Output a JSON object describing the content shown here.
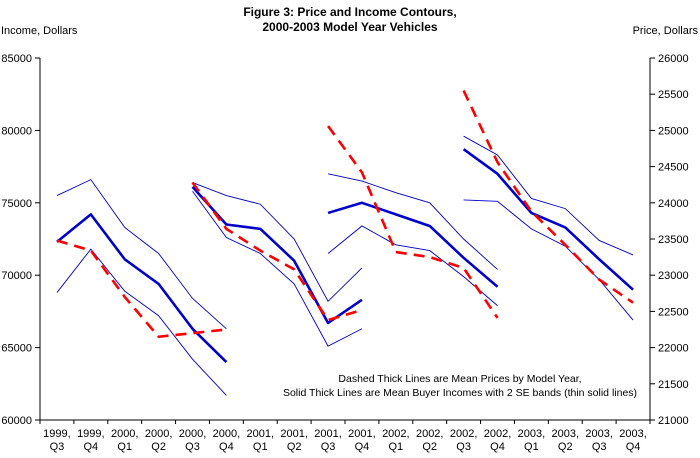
{
  "title": {
    "line1": "Figure 3: Price and Income Contours,",
    "line2": "2000-2003 Model Year Vehicles"
  },
  "left_axis": {
    "label": "Income, Dollars",
    "ticks": [
      "85000",
      "80000",
      "75000",
      "70000",
      "65000",
      "60000"
    ]
  },
  "right_axis": {
    "label": "Price, Dollars",
    "ticks": [
      "26000",
      "25500",
      "25000",
      "24500",
      "24000",
      "23500",
      "23000",
      "22500",
      "22000",
      "21500",
      "21000"
    ]
  },
  "x_axis": {
    "categories": [
      [
        "1999,",
        "Q3"
      ],
      [
        "1999,",
        "Q4"
      ],
      [
        "2000,",
        "Q1"
      ],
      [
        "2000,",
        "Q2"
      ],
      [
        "2000,",
        "Q3"
      ],
      [
        "2000,",
        "Q4"
      ],
      [
        "2001,",
        "Q1"
      ],
      [
        "2001,",
        "Q2"
      ],
      [
        "2001,",
        "Q3"
      ],
      [
        "2001,",
        "Q4"
      ],
      [
        "2002,",
        "Q1"
      ],
      [
        "2002,",
        "Q2"
      ],
      [
        "2002,",
        "Q3"
      ],
      [
        "2002,",
        "Q4"
      ],
      [
        "2003,",
        "Q1"
      ],
      [
        "2003,",
        "Q2"
      ],
      [
        "2003,",
        "Q3"
      ],
      [
        "2003,",
        "Q4"
      ]
    ]
  },
  "annotation": {
    "line1": "Dashed Thick Lines are Mean Prices by Model Year,",
    "line2": "Solid Thick Lines are Mean Buyer Incomes with 2 SE bands (thin solid lines)"
  },
  "colors": {
    "income_line": "#0000CC",
    "price_line": "#FF0000",
    "axis": "#000000"
  },
  "chart_data": {
    "type": "line",
    "title": "Figure 3: Price and Income Contours, 2000-2003 Model Year Vehicles",
    "grid": false,
    "x_categories": [
      "1999 Q3",
      "1999 Q4",
      "2000 Q1",
      "2000 Q2",
      "2000 Q3",
      "2000 Q4",
      "2001 Q1",
      "2001 Q2",
      "2001 Q3",
      "2001 Q4",
      "2002 Q1",
      "2002 Q2",
      "2002 Q3",
      "2002 Q4",
      "2003 Q1",
      "2003 Q2",
      "2003 Q3",
      "2003 Q4"
    ],
    "left_axis": {
      "label": "Income, Dollars",
      "range": [
        60000,
        85000
      ],
      "tick_step": 5000
    },
    "right_axis": {
      "label": "Price, Dollars",
      "range": [
        21000,
        26000
      ],
      "tick_step": 500
    },
    "legend_note": [
      "Dashed Thick Lines are Mean Prices by Model Year,",
      "Solid Thick Lines are Mean Buyer Incomes with 2 SE bands (thin solid lines)"
    ],
    "series_by_model_year": [
      {
        "model_year": "2000",
        "quarters": [
          "1999 Q3",
          "1999 Q4",
          "2000 Q1",
          "2000 Q2",
          "2000 Q3",
          "2000 Q4"
        ],
        "mean_buyer_income": [
          72300,
          74200,
          71100,
          69400,
          66300,
          64000
        ],
        "income_plus_2se": [
          75500,
          76600,
          73300,
          71500,
          68400,
          66300
        ],
        "income_minus_2se": [
          68800,
          71800,
          68900,
          67200,
          64200,
          61700
        ],
        "mean_price": [
          23480,
          23340,
          22700,
          22150,
          22200,
          22250
        ]
      },
      {
        "model_year": "2001",
        "quarters": [
          "2000 Q3",
          "2000 Q4",
          "2001 Q1",
          "2001 Q2",
          "2001 Q3",
          "2001 Q4"
        ],
        "mean_buyer_income": [
          76100,
          73500,
          73200,
          71000,
          66700,
          68300
        ],
        "income_plus_2se": [
          76400,
          75500,
          74900,
          72500,
          68200,
          70500
        ],
        "income_minus_2se": [
          75800,
          72600,
          71500,
          69400,
          65100,
          66300
        ],
        "mean_price": [
          24280,
          23640,
          23340,
          23080,
          22380,
          22520
        ]
      },
      {
        "model_year": "2002",
        "quarters": [
          "2001 Q3",
          "2001 Q4",
          "2002 Q1",
          "2002 Q2",
          "2002 Q3",
          "2002 Q4"
        ],
        "mean_buyer_income": [
          74300,
          75000,
          74200,
          73400,
          71200,
          69200
        ],
        "income_plus_2se": [
          77000,
          76500,
          75700,
          75000,
          72500,
          70400
        ],
        "income_minus_2se": [
          71500,
          73400,
          72100,
          71700,
          69900,
          67900
        ],
        "mean_price": [
          25060,
          24420,
          23320,
          23250,
          23100,
          22410
        ]
      },
      {
        "model_year": "2003",
        "quarters": [
          "2002 Q3",
          "2002 Q4",
          "2003 Q1",
          "2003 Q2",
          "2003 Q3",
          "2003 Q4"
        ],
        "mean_buyer_income": [
          78700,
          77000,
          74300,
          73300,
          71100,
          69000
        ],
        "income_plus_2se": [
          79600,
          78300,
          75300,
          74600,
          72400,
          71400
        ],
        "income_minus_2se": [
          75200,
          75100,
          73200,
          72000,
          69700,
          66900
        ],
        "mean_price": [
          25550,
          24560,
          23880,
          23420,
          22940,
          22620
        ]
      }
    ]
  }
}
